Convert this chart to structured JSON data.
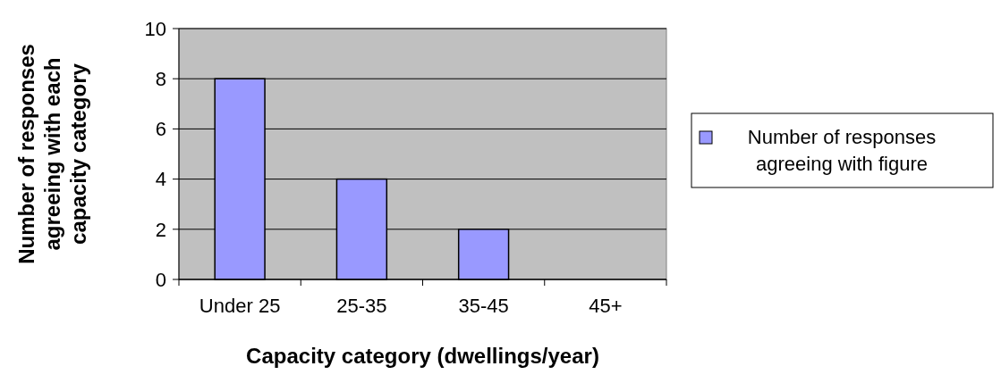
{
  "chart_data": {
    "type": "bar",
    "xlabel": "Capacity category (dwellings/year)",
    "ylabel": "Number of responses agreeing with each capacity category",
    "categories": [
      "Under 25",
      "25-35",
      "35-45",
      "45+"
    ],
    "series": [
      {
        "name": "Number of responses agreeing with figure",
        "color": "#9999ff",
        "values": [
          8,
          4,
          2,
          0
        ]
      }
    ],
    "ylim": [
      0,
      10
    ],
    "yticks": [
      0,
      2,
      4,
      6,
      8,
      10
    ],
    "grid": "y",
    "legend": "right"
  }
}
